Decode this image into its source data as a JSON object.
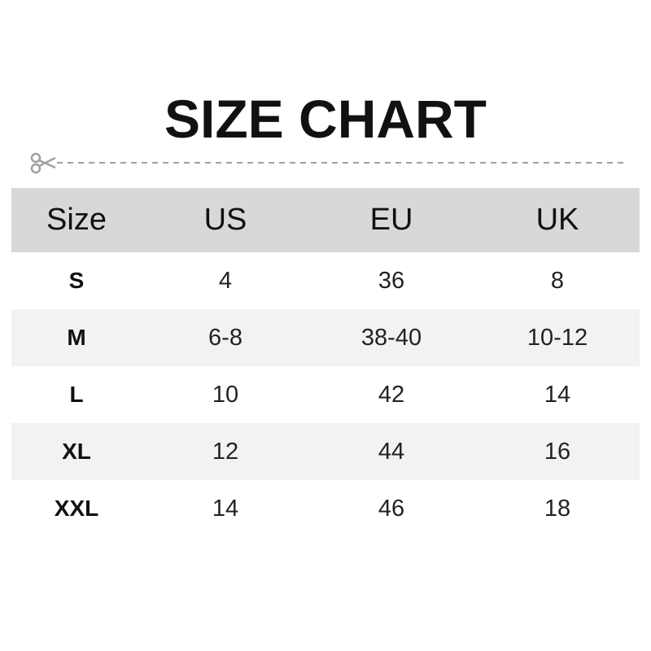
{
  "title": "SIZE CHART",
  "divider_icon": "scissors-icon",
  "colors": {
    "header_bg": "#d8d8d8",
    "alt_row_bg": "#f2f2f2",
    "divider": "#a0a0a0"
  },
  "table": {
    "headers": [
      "Size",
      "US",
      "EU",
      "UK"
    ],
    "rows": [
      [
        "S",
        "4",
        "36",
        "8"
      ],
      [
        "M",
        "6-8",
        "38-40",
        "10-12"
      ],
      [
        "L",
        "10",
        "42",
        "14"
      ],
      [
        "XL",
        "12",
        "44",
        "16"
      ],
      [
        "XXL",
        "14",
        "46",
        "18"
      ]
    ]
  }
}
